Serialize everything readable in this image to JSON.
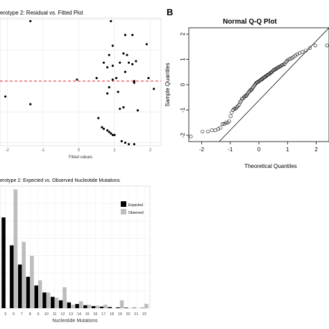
{
  "panel_b_label": "B",
  "chart_data": [
    {
      "type": "scatter",
      "title": "erotype 2: Residual vs. Fitted Plot",
      "xlabel": "Fitted values",
      "ylabel": "",
      "xlim": [
        -2.2,
        2.3
      ],
      "ylim": [
        -2.1,
        2.05
      ],
      "xticks": [
        -2,
        -1,
        0,
        1,
        2
      ],
      "xtick_labels": [
        "-2",
        "-1",
        "0",
        "1",
        "2"
      ],
      "grid": true,
      "reference_line": {
        "y": 0,
        "style": "dashed",
        "color": "#e31a1c"
      },
      "points": [
        [
          -1.35,
          1.95
        ],
        [
          -2.05,
          -0.5
        ],
        [
          -1.35,
          -0.75
        ],
        [
          -0.05,
          0.05
        ],
        [
          0.5,
          0.1
        ],
        [
          0.85,
          -0.2
        ],
        [
          0.95,
          0.05
        ],
        [
          0.8,
          -0.4
        ],
        [
          0.65,
          -1.5
        ],
        [
          0.7,
          -1.55
        ],
        [
          0.8,
          -1.6
        ],
        [
          0.85,
          -1.65
        ],
        [
          0.9,
          -1.7
        ],
        [
          0.95,
          -1.75
        ],
        [
          1.0,
          -1.75
        ],
        [
          0.55,
          -1.2
        ],
        [
          0.9,
          1.95
        ],
        [
          0.95,
          1.15
        ],
        [
          1.15,
          0.6
        ],
        [
          0.7,
          0.6
        ],
        [
          0.8,
          0.45
        ],
        [
          0.85,
          0.85
        ],
        [
          0.95,
          0.5
        ],
        [
          1.05,
          0.1
        ],
        [
          1.1,
          -0.35
        ],
        [
          1.25,
          -0.85
        ],
        [
          1.3,
          1.5
        ],
        [
          1.3,
          0.3
        ],
        [
          1.35,
          0.85
        ],
        [
          1.4,
          0.6
        ],
        [
          1.5,
          1.5
        ],
        [
          1.5,
          0.55
        ],
        [
          1.55,
          -0.05
        ],
        [
          1.6,
          0.65
        ],
        [
          1.65,
          -0.95
        ],
        [
          1.15,
          -0.9
        ],
        [
          1.2,
          -1.95
        ],
        [
          1.3,
          -2.0
        ],
        [
          1.4,
          -2.05
        ],
        [
          1.55,
          -2.05
        ],
        [
          1.9,
          1.2
        ],
        [
          1.95,
          0.1
        ],
        [
          2.1,
          -0.25
        ],
        [
          1.55,
          0.0
        ],
        [
          1.25,
          0.9
        ]
      ]
    },
    {
      "type": "scatter",
      "title": "Normal Q-Q Plot",
      "xlabel": "Theoretical Quantiles",
      "ylabel": "Sample Quantiles",
      "xlim": [
        -2.45,
        2.45
      ],
      "ylim": [
        -2.25,
        2.25
      ],
      "xticks": [
        -2,
        -1,
        0,
        1,
        2
      ],
      "xtick_labels": [
        "-2",
        "-1",
        "0",
        "1",
        "2"
      ],
      "yticks": [
        -2,
        -1,
        0,
        1,
        2
      ],
      "ytick_labels": [
        "-2",
        "-1",
        "0",
        "1",
        "2"
      ],
      "reference_line": {
        "x1": -1.6,
        "y1": -2.5,
        "x2": 2.45,
        "y2": 2.25
      },
      "points": [
        [
          -2.38,
          -2.05
        ],
        [
          -1.97,
          -1.85
        ],
        [
          -1.78,
          -1.85
        ],
        [
          -1.64,
          -1.8
        ],
        [
          -1.52,
          -1.8
        ],
        [
          -1.42,
          -1.75
        ],
        [
          -1.34,
          -1.7
        ],
        [
          -1.27,
          -1.55
        ],
        [
          -1.21,
          -1.55
        ],
        [
          -1.15,
          -1.5
        ],
        [
          -1.09,
          -1.5
        ],
        [
          -1.04,
          -1.45
        ],
        [
          -0.99,
          -1.25
        ],
        [
          -0.95,
          -1.1
        ],
        [
          -0.9,
          -1.0
        ],
        [
          -0.86,
          -0.95
        ],
        [
          -0.82,
          -0.95
        ],
        [
          -0.78,
          -0.9
        ],
        [
          -0.74,
          -0.85
        ],
        [
          -0.7,
          -0.8
        ],
        [
          -0.66,
          -0.7
        ],
        [
          -0.63,
          -0.65
        ],
        [
          -0.59,
          -0.55
        ],
        [
          -0.56,
          -0.55
        ],
        [
          -0.52,
          -0.5
        ],
        [
          -0.49,
          -0.45
        ],
        [
          -0.45,
          -0.45
        ],
        [
          -0.42,
          -0.4
        ],
        [
          -0.39,
          -0.35
        ],
        [
          -0.36,
          -0.3
        ],
        [
          -0.32,
          -0.25
        ],
        [
          -0.29,
          -0.2
        ],
        [
          -0.26,
          -0.2
        ],
        [
          -0.23,
          -0.15
        ],
        [
          -0.2,
          -0.1
        ],
        [
          -0.17,
          -0.05
        ],
        [
          -0.14,
          0.0
        ],
        [
          -0.11,
          0.05
        ],
        [
          -0.08,
          0.08
        ],
        [
          -0.05,
          0.1
        ],
        [
          -0.02,
          0.12
        ],
        [
          0.02,
          0.15
        ],
        [
          0.05,
          0.18
        ],
        [
          0.08,
          0.2
        ],
        [
          0.11,
          0.22
        ],
        [
          0.14,
          0.25
        ],
        [
          0.17,
          0.28
        ],
        [
          0.2,
          0.3
        ],
        [
          0.23,
          0.32
        ],
        [
          0.26,
          0.35
        ],
        [
          0.29,
          0.38
        ],
        [
          0.32,
          0.4
        ],
        [
          0.36,
          0.42
        ],
        [
          0.39,
          0.45
        ],
        [
          0.42,
          0.48
        ],
        [
          0.45,
          0.5
        ],
        [
          0.49,
          0.55
        ],
        [
          0.52,
          0.58
        ],
        [
          0.56,
          0.6
        ],
        [
          0.59,
          0.62
        ],
        [
          0.63,
          0.65
        ],
        [
          0.66,
          0.68
        ],
        [
          0.7,
          0.7
        ],
        [
          0.74,
          0.72
        ],
        [
          0.78,
          0.75
        ],
        [
          0.82,
          0.78
        ],
        [
          0.86,
          0.8
        ],
        [
          0.9,
          0.82
        ],
        [
          0.95,
          0.9
        ],
        [
          0.99,
          0.95
        ],
        [
          1.04,
          1.0
        ],
        [
          1.09,
          1.02
        ],
        [
          1.15,
          1.05
        ],
        [
          1.21,
          1.1
        ],
        [
          1.27,
          1.15
        ],
        [
          1.34,
          1.2
        ],
        [
          1.42,
          1.25
        ],
        [
          1.52,
          1.3
        ],
        [
          1.64,
          1.35
        ],
        [
          1.78,
          1.45
        ],
        [
          1.97,
          1.55
        ],
        [
          2.38,
          1.55
        ]
      ]
    },
    {
      "type": "bar",
      "title": "erotype 2: Expected vs. Observed Nucleotide Mutations",
      "xlabel": "Nucleotide Mutations",
      "ylabel": "",
      "categories": [
        "5",
        "6",
        "7",
        "8",
        "9",
        "10",
        "11",
        "12",
        "13",
        "14",
        "15",
        "16",
        "17",
        "18",
        "19",
        "20",
        "21",
        "22"
      ],
      "series": [
        {
          "name": "Expected",
          "color": "#000000",
          "values": [
            0.52,
            0.36,
            0.25,
            0.18,
            0.13,
            0.09,
            0.065,
            0.045,
            0.033,
            0.024,
            0.017,
            0.012,
            0.009,
            0.0065,
            0.0045,
            0.003,
            0.002,
            0.0015
          ]
        },
        {
          "name": "Observed",
          "color": "#bdbdbd",
          "values": [
            0.0,
            0.68,
            0.38,
            0.3,
            0.16,
            0.09,
            0.06,
            0.12,
            0.02,
            0.04,
            0.02,
            0.015,
            0.02,
            0.0,
            0.045,
            0.0,
            0.0,
            0.025
          ]
        }
      ],
      "ylim": [
        0,
        0.7
      ],
      "grid": true,
      "legend": "top-right"
    }
  ]
}
